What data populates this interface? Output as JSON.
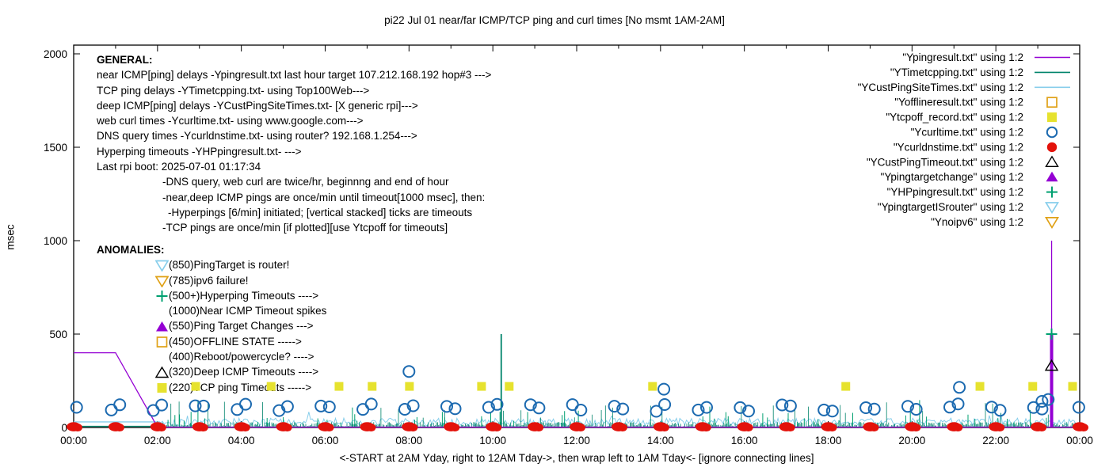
{
  "title": "pi22 Jul 01  near/far ICMP/TCP ping and curl times [No msmt 1AM-2AM]",
  "ylabel": "msec",
  "x_caption": "<-START at 2AM Yday, right to 12AM Tday->, then wrap left to 1AM Tday<- [ignore connecting lines]",
  "colors": {
    "purple": "#9400d3",
    "teal": "#00846b",
    "lightblue": "#87ceeb",
    "orange": "#e0a116",
    "yellow": "#e6e22e",
    "blue": "#1c6ab0",
    "red": "#e3120b",
    "green": "#00a070",
    "black": "#000000"
  },
  "general": {
    "header": "GENERAL:",
    "lines": [
      {
        "text": "near ICMP[ping] delays -Ypingresult.txt last hour target 107.212.168.192 hop#3 --->",
        "indent": 0
      },
      {
        "text": "TCP ping delays -YTimetcpping.txt- using Top100Web--->",
        "indent": 0
      },
      {
        "text": "deep ICMP[ping] delays -YCustPingSiteTimes.txt- [X generic rpi]--->",
        "indent": 0
      },
      {
        "text": "web curl times -Ycurltime.txt- using www.google.com--->",
        "indent": 0
      },
      {
        "text": "DNS query times -Ycurldnstime.txt- using router? 192.168.1.254--->",
        "indent": 0
      },
      {
        "text": "Hyperping timeouts -YHPpingresult.txt- --->",
        "indent": 0
      },
      {
        "text": "Last rpi boot: 2025-07-01 01:17:34",
        "indent": 0
      },
      {
        "text": "-DNS query, web curl are twice/hr, beginnng and end of hour",
        "indent": 83
      },
      {
        "text": "-near,deep ICMP pings are once/min until timeout[1000 msec], then:",
        "indent": 83
      },
      {
        "text": "-Hyperpings [6/min] initiated; [vertical stacked] ticks are timeouts",
        "indent": 90
      },
      {
        "text": "-TCP pings are once/min [if plotted][use Ytcpoff for timeouts]",
        "indent": 83
      }
    ]
  },
  "anomalies": {
    "header": "ANOMALIES:",
    "rows": [
      {
        "marker": "tri-down-open",
        "color": "#87ceeb",
        "text": "(850)PingTarget is router!"
      },
      {
        "marker": "tri-down-open",
        "color": "#e0a116",
        "text": "(785)ipv6 failure!"
      },
      {
        "marker": "cross",
        "color": "#00a070",
        "text": "(500+)Hyperping Timeouts ---->"
      },
      {
        "marker": "none",
        "color": "",
        "text": "(1000)Near ICMP Timeout spikes"
      },
      {
        "marker": "tri-up-filled",
        "color": "#9400d3",
        "text": "(550)Ping Target Changes --->"
      },
      {
        "marker": "square-open",
        "color": "#e0a116",
        "text": "(450)OFFLINE STATE ----->"
      },
      {
        "marker": "none",
        "color": "",
        "text": "(400)Reboot/powercycle? ---->"
      },
      {
        "marker": "tri-up-open",
        "color": "#000000",
        "text": "(320)Deep ICMP Timeouts ---->"
      },
      {
        "marker": "square-filled",
        "color": "#e6e22e",
        "text": "(220)TCP ping Timeouts ----->"
      }
    ]
  },
  "legend": {
    "items": [
      {
        "label": "\"Ypingresult.txt\" using 1:2",
        "marker": "line",
        "color": "#9400d3"
      },
      {
        "label": "\"YTimetcpping.txt\" using 1:2",
        "marker": "line",
        "color": "#00846b"
      },
      {
        "label": "\"YCustPingSiteTimes.txt\" using 1:2",
        "marker": "line",
        "color": "#87ceeb"
      },
      {
        "label": "\"Yofflineresult.txt\" using 1:2",
        "marker": "square-open",
        "color": "#e0a116"
      },
      {
        "label": "\"Ytcpoff_record.txt\" using 1:2",
        "marker": "square-filled",
        "color": "#e6e22e"
      },
      {
        "label": "\"Ycurltime.txt\" using 1:2",
        "marker": "circle-open",
        "color": "#1c6ab0"
      },
      {
        "label": "\"Ycurldnstime.txt\" using 1:2",
        "marker": "circle-filled",
        "color": "#e3120b"
      },
      {
        "label": "\"YCustPingTimeout.txt\" using 1:2",
        "marker": "tri-up-open",
        "color": "#000000"
      },
      {
        "label": "\"Ypingtargetchange\" using 1:2",
        "marker": "tri-up-filled",
        "color": "#9400d3"
      },
      {
        "label": "\"YHPpingresult.txt\" using 1:2",
        "marker": "cross",
        "color": "#00a070"
      },
      {
        "label": "\"YpingtargetISrouter\" using 1:2",
        "marker": "tri-down-open",
        "color": "#87ceeb"
      },
      {
        "label": "\"Ynoipv6\" using 1:2",
        "marker": "tri-down-open",
        "color": "#e0a116"
      }
    ]
  },
  "chart_data": {
    "type": "line",
    "title": "pi22 Jul 01  near/far ICMP/TCP ping and curl times [No msmt 1AM-2AM]",
    "xlabel": "<-START at 2AM Yday, right to 12AM Tday->, then wrap left to 1AM Tday<- [ignore connecting lines]",
    "ylabel": "msec",
    "ylim": [
      0,
      2000
    ],
    "xlim_hours": [
      0,
      24
    ],
    "grid": false,
    "legend_position": "top-right",
    "x_ticks": [
      "00:00",
      "02:00",
      "04:00",
      "06:00",
      "08:00",
      "10:00",
      "12:00",
      "14:00",
      "16:00",
      "18:00",
      "20:00",
      "22:00",
      "00:00"
    ],
    "y_ticks": [
      0,
      500,
      1000,
      1500,
      2000
    ],
    "series": [
      {
        "name": "Ypingresult.txt",
        "type": "line",
        "color": "#9400d3",
        "points": [
          [
            0,
            400
          ],
          [
            1,
            400
          ],
          [
            2,
            2
          ],
          [
            24,
            2
          ]
        ],
        "timeout_spike": {
          "hour": 23.33,
          "thick_top": 505,
          "thin_top": 1000
        }
      },
      {
        "name": "YTimetcpping.txt",
        "type": "noise-ticks",
        "color": "#00846b",
        "flat": {
          "hours": [
            0,
            2
          ],
          "value": 6
        },
        "range_hours": [
          2,
          24
        ],
        "base_msec": [
          3,
          29
        ],
        "spike_prob": 0.035,
        "spike_msec": [
          50,
          145
        ],
        "big_spike": {
          "hour": 10.2,
          "value": 500
        }
      },
      {
        "name": "YCustPingSiteTimes.txt",
        "type": "noise-band",
        "color": "#87ceeb",
        "flat": {
          "hours": [
            0,
            2
          ],
          "value": 30
        },
        "range_hours": [
          2,
          24
        ],
        "base_msec": [
          10,
          50
        ],
        "spike_prob": 0.02,
        "spike_extra": 50
      },
      {
        "name": "Yofflineresult.txt",
        "type": "square-open",
        "color": "#e0a116",
        "points": []
      },
      {
        "name": "Ytcpoff_record.txt",
        "type": "square-filled",
        "color": "#e6e22e",
        "value": 220,
        "hours": [
          2.91,
          4.71,
          6.33,
          7.12,
          8.01,
          9.73,
          10.39,
          13.81,
          18.42,
          21.62,
          22.88,
          23.83
        ]
      },
      {
        "name": "Ycurltime.txt",
        "type": "circle-open",
        "color": "#1c6ab0",
        "pairs": {
          "hours_from": 1,
          "hours_to": 23,
          "offset": 0.1,
          "msec_range": [
            85,
            128
          ]
        },
        "edges": [
          [
            0.07,
            108
          ],
          [
            23.98,
            108
          ]
        ],
        "specials": [
          [
            8.0,
            300
          ],
          [
            14.08,
            205
          ],
          [
            21.13,
            215
          ],
          [
            23.1,
            140
          ],
          [
            23.25,
            150
          ]
        ]
      },
      {
        "name": "Ycurldnstime.txt",
        "type": "dot-filled",
        "color": "#e3120b",
        "value": 4,
        "every_hour": [
          0,
          24
        ]
      },
      {
        "name": "YCustPingTimeout.txt",
        "type": "tri-up-open",
        "color": "#000000",
        "points": [
          [
            23.33,
            330
          ]
        ]
      },
      {
        "name": "Ypingtargetchange",
        "type": "tri-up-filled",
        "color": "#9400d3",
        "points": []
      },
      {
        "name": "YHPpingresult.txt",
        "type": "cross",
        "color": "#00a070",
        "points": [
          [
            23.33,
            500
          ]
        ],
        "ticks": {
          "range_hours": [
            2,
            24
          ],
          "prob": 0.14,
          "msec_range": [
            25,
            95
          ],
          "tall_prob": 0.04,
          "tall_msec": [
            100,
            165
          ]
        }
      },
      {
        "name": "YpingtargetISrouter",
        "type": "tri-down-open",
        "color": "#87ceeb",
        "points": []
      },
      {
        "name": "Ynoipv6",
        "type": "tri-down-open",
        "color": "#e0a116",
        "points": []
      }
    ]
  }
}
